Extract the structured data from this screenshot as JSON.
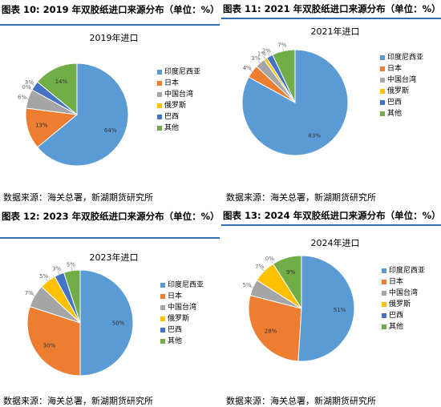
{
  "panels": [
    {
      "id": "p1",
      "fig_label": "图表 10:",
      "fig_title": "2019 年双胶纸进口来源分布（单位：%）",
      "source": "数据来源：海关总署，新湖期货研究所",
      "chart_data": {
        "type": "pie",
        "title": "2019年进口",
        "categories": [
          "印度尼西亚",
          "日本",
          "中国台湾",
          "俄罗斯",
          "巴西",
          "其他"
        ],
        "values": [
          64,
          13,
          6,
          0,
          3,
          14
        ],
        "labels": [
          "64%",
          "13%",
          "6%",
          "0%",
          "3%",
          "14%"
        ],
        "colors": [
          "#5b9bd5",
          "#ed7d31",
          "#a5a5a5",
          "#ffc000",
          "#4472c4",
          "#70ad47"
        ],
        "legend": "right"
      }
    },
    {
      "id": "p2",
      "fig_label": "图表 11:",
      "fig_title": "2021 年双胶纸进口来源分布（单位：%）",
      "source": "数据来源：海关总署，新湖期货研究所",
      "chart_data": {
        "type": "pie",
        "title": "2021年进口",
        "categories": [
          "印度尼西亚",
          "日本",
          "中国台湾",
          "俄罗斯",
          "巴西",
          "其他"
        ],
        "values": [
          83,
          4,
          3,
          1,
          2,
          7
        ],
        "labels": [
          "83%",
          "4%",
          "3%",
          "1%",
          "2%",
          "7%"
        ],
        "colors": [
          "#5b9bd5",
          "#ed7d31",
          "#a5a5a5",
          "#ffc000",
          "#4472c4",
          "#70ad47"
        ],
        "legend": "right"
      }
    },
    {
      "id": "p3",
      "fig_label": "图表 12:",
      "fig_title": "2023 年双胶纸进口来源分布（单位：%）",
      "source": "数据来源：海关总署，新湖期货研究所",
      "chart_data": {
        "type": "pie",
        "title": "2023年进口",
        "categories": [
          "印度尼西亚",
          "日本",
          "中国台湾",
          "俄罗斯",
          "巴西",
          "其他"
        ],
        "values": [
          50,
          30,
          7,
          5,
          3,
          5
        ],
        "labels": [
          "50%",
          "30%",
          "7%",
          "5%",
          "3%",
          "5%"
        ],
        "colors": [
          "#5b9bd5",
          "#ed7d31",
          "#a5a5a5",
          "#ffc000",
          "#4472c4",
          "#70ad47"
        ],
        "legend": "right"
      }
    },
    {
      "id": "p4",
      "fig_label": "图表 13:",
      "fig_title": "2024 年双胶纸进口来源分布（单位：%）",
      "source": "数据来源：海关总署，新湖期货研究所",
      "chart_data": {
        "type": "pie",
        "title": "2024年进口",
        "categories": [
          "印度尼西亚",
          "日本",
          "中国台湾",
          "俄罗斯",
          "巴西",
          "其他"
        ],
        "values": [
          51,
          28,
          5,
          7,
          0,
          9
        ],
        "labels": [
          "51%",
          "28%",
          "5%",
          "7%",
          "0%",
          "9%"
        ],
        "colors": [
          "#5b9bd5",
          "#ed7d31",
          "#a5a5a5",
          "#ffc000",
          "#4472c4",
          "#70ad47"
        ],
        "legend": "right"
      }
    }
  ]
}
